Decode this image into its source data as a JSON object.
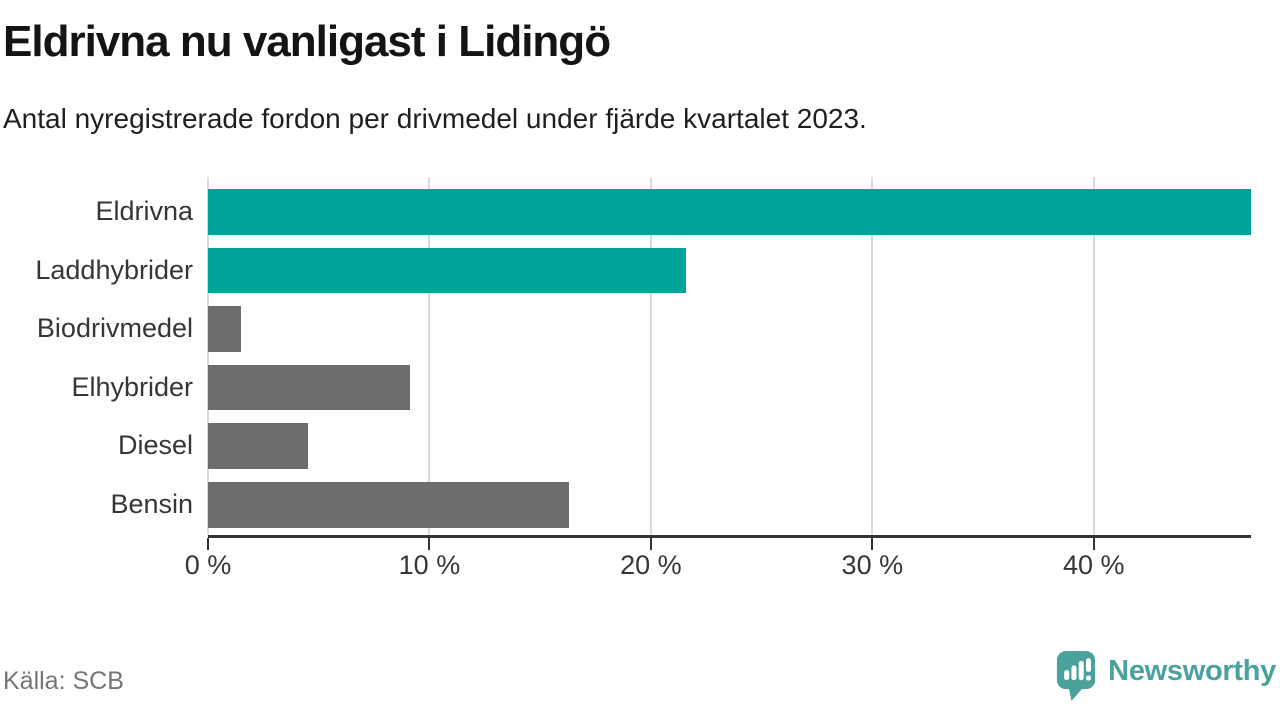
{
  "header": {
    "title": "Eldrivna nu vanligast i Lidingö",
    "subtitle": "Antal nyregistrerade fordon per drivmedel under fjärde kvartalet 2023."
  },
  "chart_data": {
    "type": "bar",
    "orientation": "horizontal",
    "title": "Eldrivna nu vanligast i Lidingö",
    "subtitle": "Antal nyregistrerade fordon per drivmedel under fjärde kvartalet 2023.",
    "categories": [
      "Eldrivna",
      "Laddhybrider",
      "Biodrivmedel",
      "Elhybrider",
      "Diesel",
      "Bensin"
    ],
    "values": [
      47.1,
      21.6,
      1.5,
      9.1,
      4.5,
      16.3
    ],
    "unit": "%",
    "bar_colors": [
      "#00a39a",
      "#00a39a",
      "#6c6c6e",
      "#6c6c6e",
      "#6c6c6e",
      "#6c6c6e"
    ],
    "xlim": [
      0,
      47.1
    ],
    "x_ticks": [
      0,
      10,
      20,
      30,
      40
    ],
    "x_tick_labels": [
      "0 %",
      "10 %",
      "20 %",
      "30 %",
      "40 %"
    ],
    "grid": "vertical-behind-bars",
    "legend": "none"
  },
  "footer": {
    "source": "Källa: SCB",
    "brand": "Newsworthy"
  },
  "colors": {
    "accent_teal": "#00a39a",
    "bar_gray": "#6c6c6e",
    "gridline": "#d9d9d9",
    "axis": "#333333",
    "brand_teal": "#4ba19b",
    "source_gray": "#757575"
  }
}
